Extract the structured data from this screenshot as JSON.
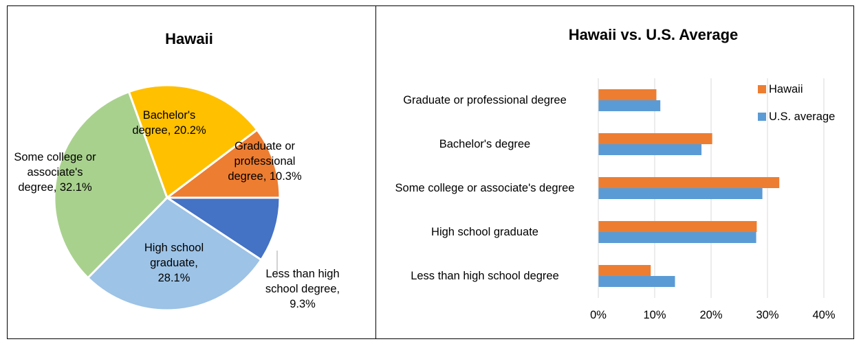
{
  "chart_data": [
    {
      "type": "pie",
      "title": "Hawaii",
      "categories": [
        "Less than high school degree",
        "High school graduate",
        "Some college or associate's degree",
        "Bachelor's degree",
        "Graduate or professional degree"
      ],
      "values": [
        9.3,
        28.1,
        32.1,
        20.2,
        10.3
      ],
      "data_labels": [
        "Less than high school degree, 9.3%",
        "High school graduate, 28.1%",
        "Some college or associate's degree, 32.1%",
        "Bachelor's degree, 20.2%",
        "Graduate or professional degree, 10.3%"
      ],
      "colors": [
        "#4472c4",
        "#9dc3e6",
        "#a9d18e",
        "#ffc000",
        "#ed7d31"
      ]
    },
    {
      "type": "hbar",
      "title": "Hawaii vs. U.S. Average",
      "categories": [
        "Graduate or professional degree",
        "Bachelor's degree",
        "Some college or associate's degree",
        "High school graduate",
        "Less than high school degree"
      ],
      "series": [
        {
          "name": "Hawaii",
          "color": "#ed7d31",
          "values": [
            10.3,
            20.2,
            32.1,
            28.1,
            9.3
          ]
        },
        {
          "name": "U.S. average",
          "color": "#5b9bd5",
          "values": [
            11.0,
            18.3,
            29.1,
            28.0,
            13.6
          ]
        }
      ],
      "xlim": [
        0,
        40
      ],
      "xticks": [
        {
          "value": 0,
          "label": "0%"
        },
        {
          "value": 10,
          "label": "10%"
        },
        {
          "value": 20,
          "label": "20%"
        },
        {
          "value": 30,
          "label": "30%"
        },
        {
          "value": 40,
          "label": "40%"
        }
      ],
      "grid": true,
      "legend": "top-right"
    }
  ]
}
